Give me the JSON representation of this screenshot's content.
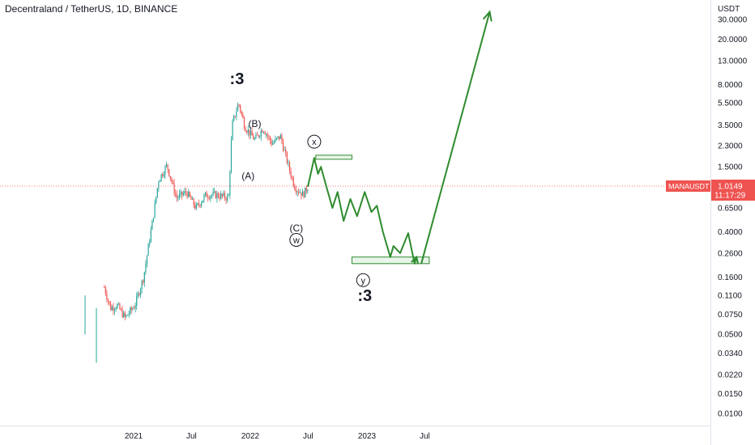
{
  "title": "Decentraland / TetherUS, 1D, BINANCE",
  "colors": {
    "up": "#26a69a",
    "down": "#ef5350",
    "projection": "#2e8b2e",
    "price_line": "#ef5350",
    "price_tag": "#ef5350"
  },
  "price_tag": {
    "symbol": "MANAUSDT",
    "price": "1.0149",
    "countdown": "11:17:29"
  },
  "chart_data": {
    "type": "candlestick",
    "scale": "log",
    "y_unit": "USDT",
    "y_ticks": [
      "30.0000",
      "20.0000",
      "13.0000",
      "8.0000",
      "5.5000",
      "3.5000",
      "2.3000",
      "1.5000",
      "0.6500",
      "0.4000",
      "0.2600",
      "0.1600",
      "0.1100",
      "0.0750",
      "0.0500",
      "0.0340",
      "0.0220",
      "0.0150",
      "0.0100"
    ],
    "x_ticks": [
      "2021",
      "Jul",
      "2022",
      "Jul",
      "2023",
      "Jul"
    ],
    "last_price": 1.0149,
    "price_path": [
      {
        "date": "2020-10-01",
        "price": 0.13
      },
      {
        "date": "2020-10-20",
        "price": 0.085
      },
      {
        "date": "2020-11-10",
        "price": 0.09
      },
      {
        "date": "2020-12-05",
        "price": 0.07
      },
      {
        "date": "2021-01-05",
        "price": 0.09
      },
      {
        "date": "2021-02-01",
        "price": 0.16
      },
      {
        "date": "2021-03-01",
        "price": 0.5
      },
      {
        "date": "2021-03-20",
        "price": 1.15
      },
      {
        "date": "2021-04-15",
        "price": 1.55
      },
      {
        "date": "2021-05-15",
        "price": 0.8
      },
      {
        "date": "2021-06-15",
        "price": 0.9
      },
      {
        "date": "2021-07-15",
        "price": 0.65
      },
      {
        "date": "2021-08-15",
        "price": 0.85
      },
      {
        "date": "2021-09-15",
        "price": 0.85
      },
      {
        "date": "2021-10-25",
        "price": 0.8
      },
      {
        "date": "2021-11-05",
        "price": 3.5
      },
      {
        "date": "2021-11-25",
        "price": 5.5
      },
      {
        "date": "2021-12-15",
        "price": 3.4
      },
      {
        "date": "2022-01-15",
        "price": 2.6
      },
      {
        "date": "2022-02-10",
        "price": 3.3
      },
      {
        "date": "2022-03-10",
        "price": 2.4
      },
      {
        "date": "2022-04-05",
        "price": 2.8
      },
      {
        "date": "2022-05-01",
        "price": 1.5
      },
      {
        "date": "2022-05-20",
        "price": 1.0
      },
      {
        "date": "2022-06-15",
        "price": 0.85
      },
      {
        "date": "2022-06-30",
        "price": 1.0
      }
    ],
    "projection": [
      {
        "date": "2022-06-30",
        "price": 1.0
      },
      {
        "date": "2022-07-20",
        "price": 1.8
      },
      {
        "date": "2022-08-01",
        "price": 1.3
      },
      {
        "date": "2022-08-10",
        "price": 1.5
      },
      {
        "date": "2022-08-25",
        "price": 1.05
      },
      {
        "date": "2022-09-15",
        "price": 0.65
      },
      {
        "date": "2022-10-01",
        "price": 0.9
      },
      {
        "date": "2022-10-20",
        "price": 0.5
      },
      {
        "date": "2022-11-10",
        "price": 0.78
      },
      {
        "date": "2022-12-01",
        "price": 0.55
      },
      {
        "date": "2022-12-25",
        "price": 0.9
      },
      {
        "date": "2023-01-15",
        "price": 0.6
      },
      {
        "date": "2023-02-01",
        "price": 0.68
      },
      {
        "date": "2023-02-20",
        "price": 0.4
      },
      {
        "date": "2023-03-15",
        "price": 0.24
      },
      {
        "date": "2023-03-25",
        "price": 0.3
      },
      {
        "date": "2023-04-15",
        "price": 0.26
      },
      {
        "date": "2023-05-10",
        "price": 0.39
      },
      {
        "date": "2023-05-30",
        "price": 0.21
      },
      {
        "date": "2023-06-05",
        "price": 0.24
      }
    ],
    "breakout_arrow": [
      {
        "date": "2023-06-20",
        "price": 0.21
      },
      {
        "date": "2024-01-20",
        "price": 35
      }
    ],
    "boxes": [
      {
        "x0": "2022-07-25",
        "x1": "2022-11-15",
        "y_low": 1.8,
        "y_high": 1.9
      },
      {
        "x0": "2022-11-15",
        "x1": "2023-07-15",
        "y_low": 0.21,
        "y_high": 0.24
      }
    ],
    "annotations": [
      {
        "text": ":3",
        "date": "2021-11-20",
        "price": 9.0,
        "style": "big"
      },
      {
        "text": "(B)",
        "date": "2022-01-15",
        "price": 3.6,
        "style": "plain"
      },
      {
        "text": "(A)",
        "date": "2021-12-25",
        "price": 1.25,
        "style": "plain"
      },
      {
        "text": "x",
        "date": "2022-07-20",
        "price": 2.5,
        "style": "circled"
      },
      {
        "text": "(C)",
        "date": "2022-05-25",
        "price": 0.43,
        "style": "plain"
      },
      {
        "text": "w",
        "date": "2022-05-25",
        "price": 0.34,
        "style": "circled"
      },
      {
        "text": "y",
        "date": "2022-12-20",
        "price": 0.15,
        "style": "circled"
      },
      {
        "text": ":3",
        "date": "2022-12-25",
        "price": 0.11,
        "style": "big"
      }
    ]
  }
}
